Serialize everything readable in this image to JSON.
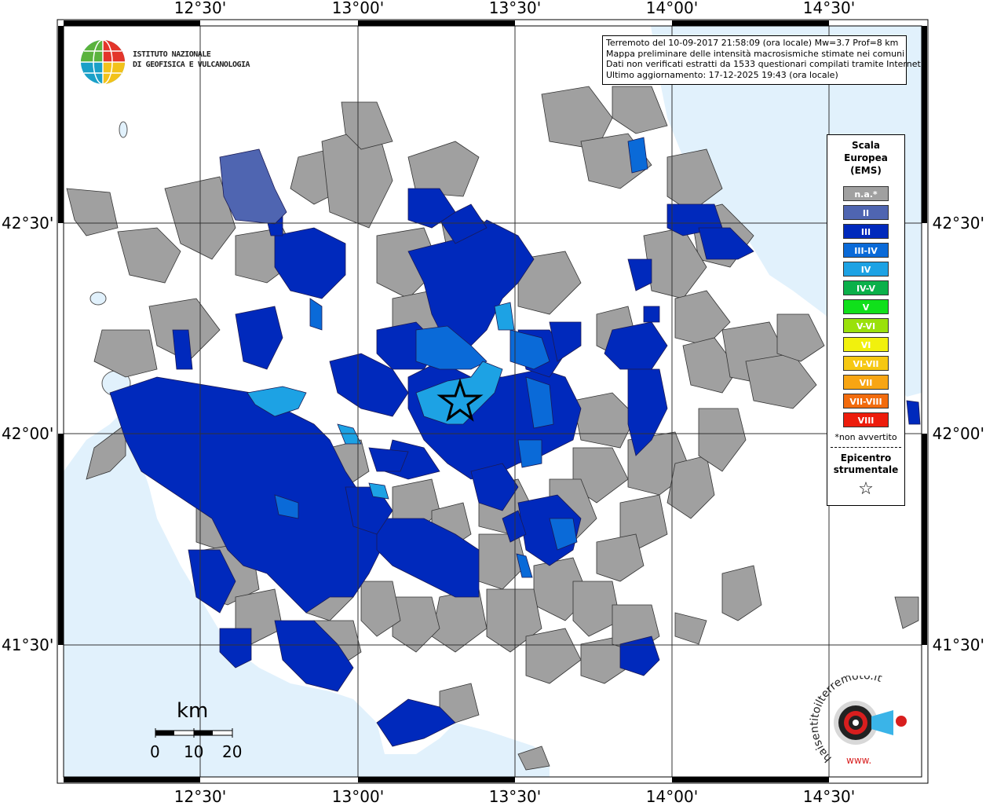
{
  "map": {
    "longitude_ticks": [
      "12°30'",
      "13°00'",
      "13°30'",
      "14°00'",
      "14°30'"
    ],
    "latitude_ticks": [
      "42°30'",
      "42°00'",
      "41°30'"
    ],
    "colors": {
      "sea": "#e1f1fc",
      "na": "#a0a0a0",
      "II": "#4f65b1",
      "III": "#0029bc",
      "III-IV": "#0a6ad8",
      "IV": "#1da2e4"
    },
    "epicenter_symbol": "star-icon"
  },
  "info": {
    "line1": "Terremoto del 10-09-2017 21:58:09 (ora locale) Mw=3.7 Prof=8 km",
    "line2": "Mappa preliminare delle intensità macrosismiche stimate nei comuni",
    "line3": "Dati non verificati estratti da 1533 questionari compilati tramite Internet.",
    "line4": "Ultimo aggiornamento: 17-12-2025 19:43 (ora locale)"
  },
  "logo": {
    "line1": "ISTITUTO NAZIONALE",
    "line2": "DI GEOFISICA E VULCANOLOGIA",
    "icon": "globe-icon"
  },
  "legend": {
    "title1": "Scala",
    "title2": "Europea",
    "title3": "(EMS)",
    "items": [
      {
        "label": "n.a.*",
        "color": "#a0a0a0"
      },
      {
        "label": "II",
        "color": "#4f65b1"
      },
      {
        "label": "III",
        "color": "#0029bc"
      },
      {
        "label": "III-IV",
        "color": "#0a6ad8"
      },
      {
        "label": "IV",
        "color": "#1da2e4"
      },
      {
        "label": "IV-V",
        "color": "#0bb04a"
      },
      {
        "label": "V",
        "color": "#10e01b"
      },
      {
        "label": "V-VI",
        "color": "#9ae10b"
      },
      {
        "label": "VI",
        "color": "#f1f10d"
      },
      {
        "label": "VI-VII",
        "color": "#f6c812"
      },
      {
        "label": "VII",
        "color": "#f8a513"
      },
      {
        "label": "VII-VIII",
        "color": "#f26b0d"
      },
      {
        "label": "VIII",
        "color": "#ed1c0c"
      }
    ],
    "note": "*non avvertito",
    "epicenter1": "Epicentro",
    "epicenter2": "strumentale",
    "star": "☆"
  },
  "scale": {
    "unit": "km",
    "ticks": [
      "0",
      "10",
      "20"
    ]
  },
  "hsi_logo": {
    "text": "haisentitoilterremoto.it",
    "url": "www.",
    "icon": "target-icon"
  }
}
